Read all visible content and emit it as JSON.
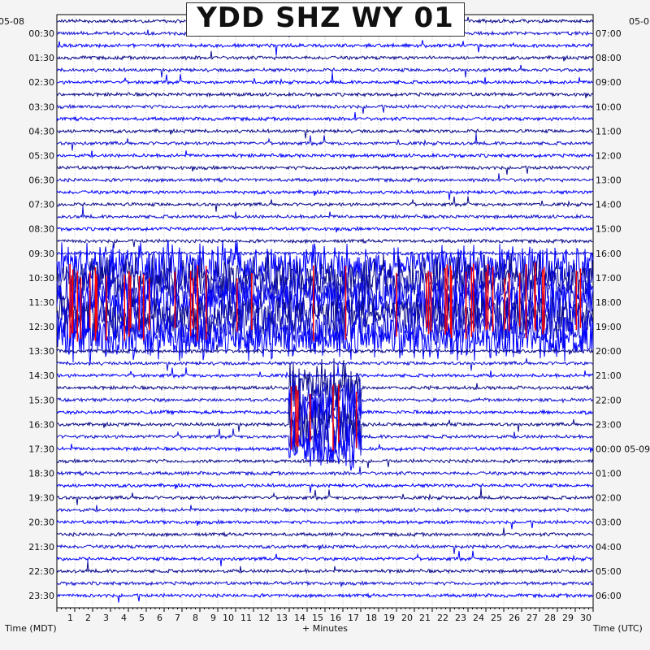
{
  "chart_data": {
    "type": "helicorder",
    "title": "YDD SHZ WY 01",
    "date_left": "05-08",
    "date_right_top": "05-0",
    "xlabel": "+ Minutes",
    "left_axis_label": "Time (MDT)",
    "right_axis_label": "Time (UTC)",
    "x_ticks": [
      "1",
      "2",
      "3",
      "4",
      "5",
      "6",
      "7",
      "8",
      "9",
      "10",
      "11",
      "12",
      "13",
      "14",
      "15",
      "16",
      "17",
      "18",
      "19",
      "20",
      "21",
      "22",
      "23",
      "24",
      "25",
      "26",
      "27",
      "28",
      "29",
      "30"
    ],
    "xlim": [
      0,
      30
    ],
    "left_times": [
      "00:30",
      "01:30",
      "02:30",
      "03:30",
      "04:30",
      "05:30",
      "06:30",
      "07:30",
      "08:30",
      "09:30",
      "10:30",
      "11:30",
      "12:30",
      "13:30",
      "14:30",
      "15:30",
      "16:30",
      "17:30",
      "18:30",
      "19:30",
      "20:30",
      "21:30",
      "22:30",
      "23:30"
    ],
    "right_times": [
      "07:00",
      "08:00",
      "09:00",
      "10:00",
      "11:00",
      "12:00",
      "13:00",
      "14:00",
      "15:00",
      "16:00",
      "17:00",
      "18:00",
      "19:00",
      "20:00",
      "21:00",
      "22:00",
      "23:00",
      "00:00 05-09",
      "01:00",
      "02:00",
      "03:00",
      "04:00",
      "05:00",
      "06:00"
    ],
    "trace_count": 48,
    "trace_minutes": 30,
    "trace_colors": [
      "#0a0a8a",
      "#1010d0",
      "#0000ff"
    ],
    "clip_color": "#ff0000",
    "activity": [
      {
        "name": "Strong signal 10:00-12:30 MDT",
        "start_trace": 20,
        "end_trace": 26,
        "start_min": 0,
        "end_min": 30
      },
      {
        "name": "Event near 15:00-17:00 MDT",
        "start_trace": 30,
        "end_trace": 35,
        "start_min": 13,
        "end_min": 17
      }
    ]
  }
}
